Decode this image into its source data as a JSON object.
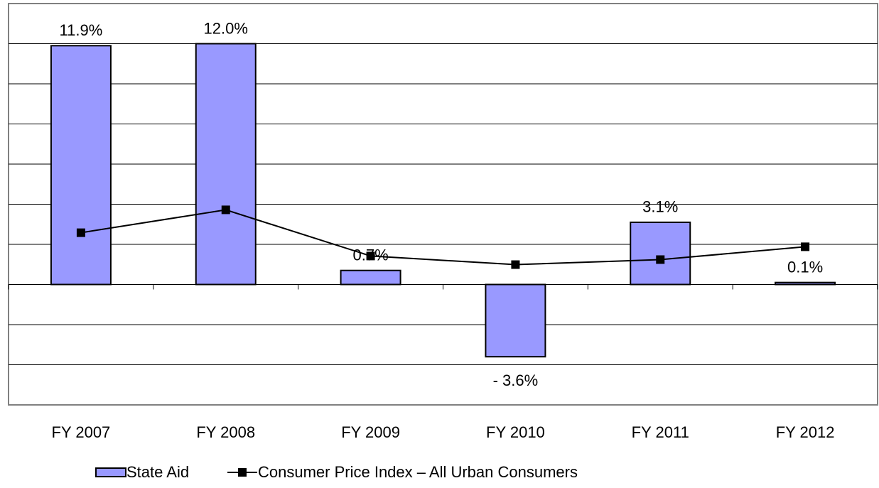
{
  "chart_data": {
    "type": "bar_line",
    "categories": [
      "FY 2007",
      "FY 2008",
      "FY 2009",
      "FY 2010",
      "FY 2011",
      "FY 2012"
    ],
    "series": [
      {
        "name": "State Aid",
        "type": "bar",
        "color": "#9999ff",
        "values": [
          11.9,
          12.0,
          0.7,
          -3.6,
          3.1,
          0.1
        ],
        "value_labels": [
          "11.9%",
          "12.0%",
          "0.7%",
          "- 3.6%",
          "3.1%",
          "0.1%"
        ]
      },
      {
        "name": "Consumer Price Index – All Urban Consumers",
        "type": "line",
        "color": "#000000",
        "values": [
          2.58,
          3.72,
          1.42,
          0.99,
          1.24,
          1.88
        ]
      }
    ],
    "ylim": [
      -6,
      14
    ],
    "yticks": [
      -4,
      -2,
      0,
      2,
      4,
      6,
      8,
      10,
      12
    ],
    "grid": true
  }
}
